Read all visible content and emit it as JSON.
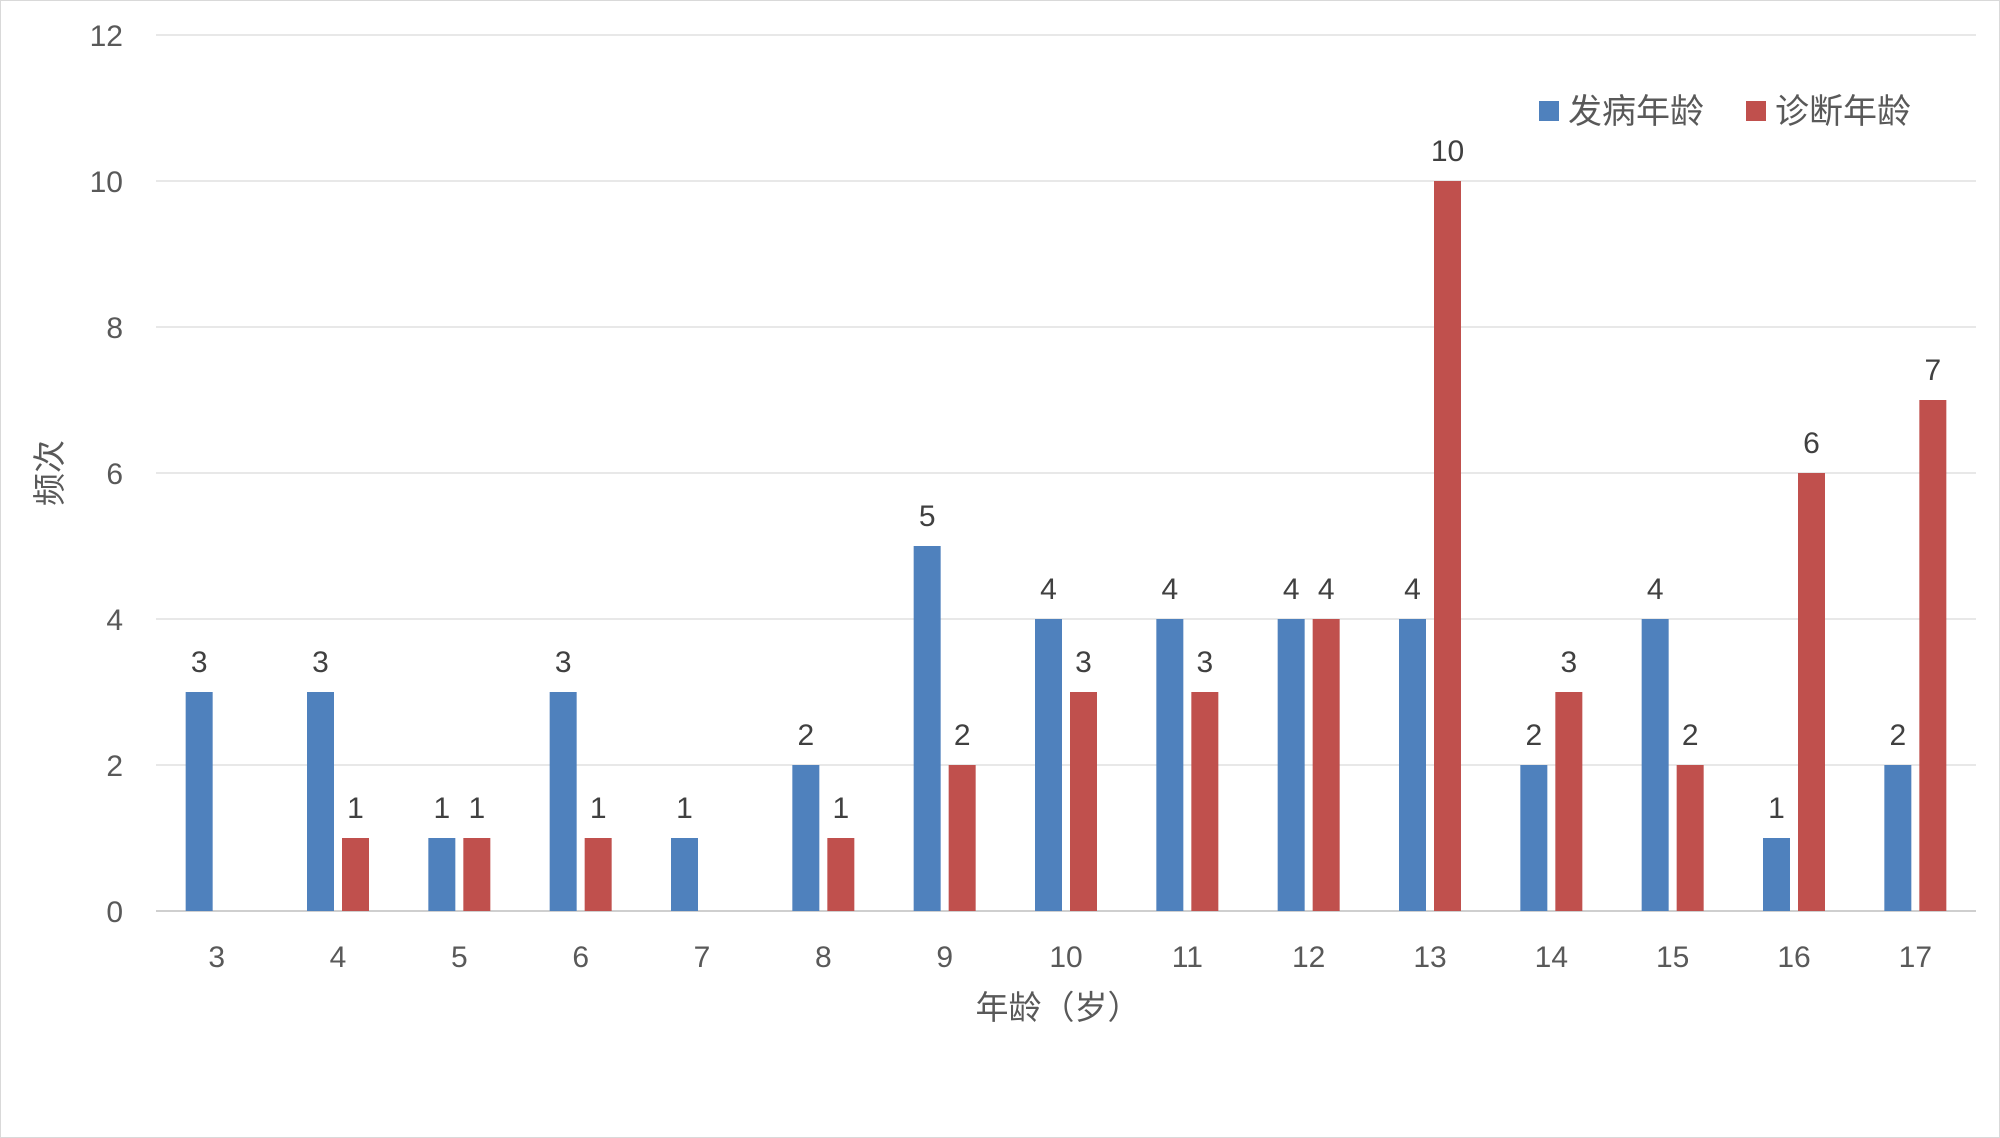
{
  "chart_data": {
    "type": "bar",
    "title": "",
    "xlabel": "年龄（岁）",
    "ylabel": "频次",
    "categories": [
      "3",
      "4",
      "5",
      "6",
      "7",
      "8",
      "9",
      "10",
      "11",
      "12",
      "13",
      "14",
      "15",
      "16",
      "17"
    ],
    "ylim": [
      0,
      12
    ],
    "yticks": [
      "0",
      "2",
      "4",
      "6",
      "8",
      "10",
      "12"
    ],
    "grid": true,
    "legend_position": "top-right",
    "series": [
      {
        "name": "发病年龄",
        "color": "#4f81bd",
        "values": [
          3,
          3,
          1,
          3,
          1,
          2,
          5,
          4,
          4,
          4,
          4,
          2,
          4,
          1,
          2
        ]
      },
      {
        "name": "诊断年龄",
        "color": "#c0504d",
        "values": [
          0,
          1,
          1,
          1,
          0,
          1,
          2,
          3,
          3,
          4,
          10,
          3,
          2,
          6,
          7
        ]
      }
    ]
  }
}
